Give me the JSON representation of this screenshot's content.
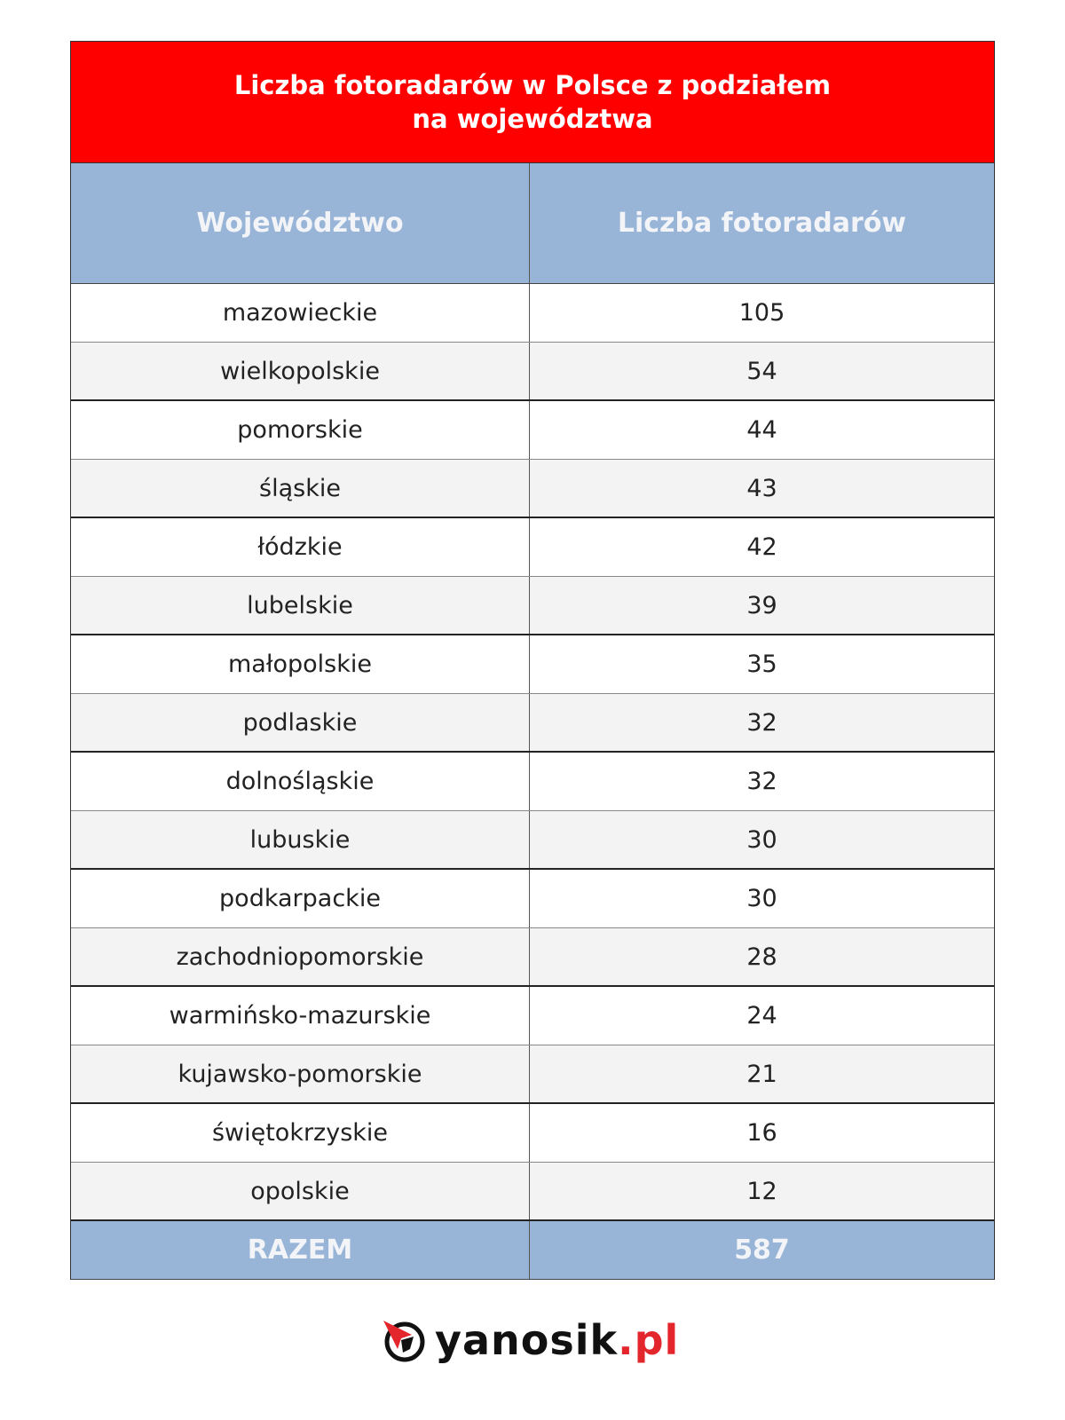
{
  "title": {
    "line1": "Liczba fotoradarów w Polsce z podziałem",
    "line2": "na województwa"
  },
  "columns": [
    "Województwo",
    "Liczba fotoradarów"
  ],
  "rows": [
    {
      "region": "mazowieckie",
      "count": "105"
    },
    {
      "region": "wielkopolskie",
      "count": "54"
    },
    {
      "region": "pomorskie",
      "count": "44"
    },
    {
      "region": "śląskie",
      "count": "43"
    },
    {
      "region": "łódzkie",
      "count": "42"
    },
    {
      "region": "lubelskie",
      "count": "39"
    },
    {
      "region": "małopolskie",
      "count": "35"
    },
    {
      "region": "podlaskie",
      "count": "32"
    },
    {
      "region": "dolnośląskie",
      "count": "32"
    },
    {
      "region": "lubuskie",
      "count": "30"
    },
    {
      "region": "podkarpackie",
      "count": "30"
    },
    {
      "region": "zachodniopomorskie",
      "count": "28"
    },
    {
      "region": "warmińsko-mazurskie",
      "count": "24"
    },
    {
      "region": "kujawsko-pomorskie",
      "count": "21"
    },
    {
      "region": "świętokrzyskie",
      "count": "16"
    },
    {
      "region": "opolskie",
      "count": "12"
    }
  ],
  "total": {
    "label": "RAZEM",
    "value": "587"
  },
  "logo": {
    "name": "yanosik",
    "tld": ".pl",
    "icon": "yanosik-arrow-icon"
  },
  "colors": {
    "title_bg": "#fe0000",
    "header_bg": "#98b4d7",
    "logo_red": "#e3262b"
  }
}
